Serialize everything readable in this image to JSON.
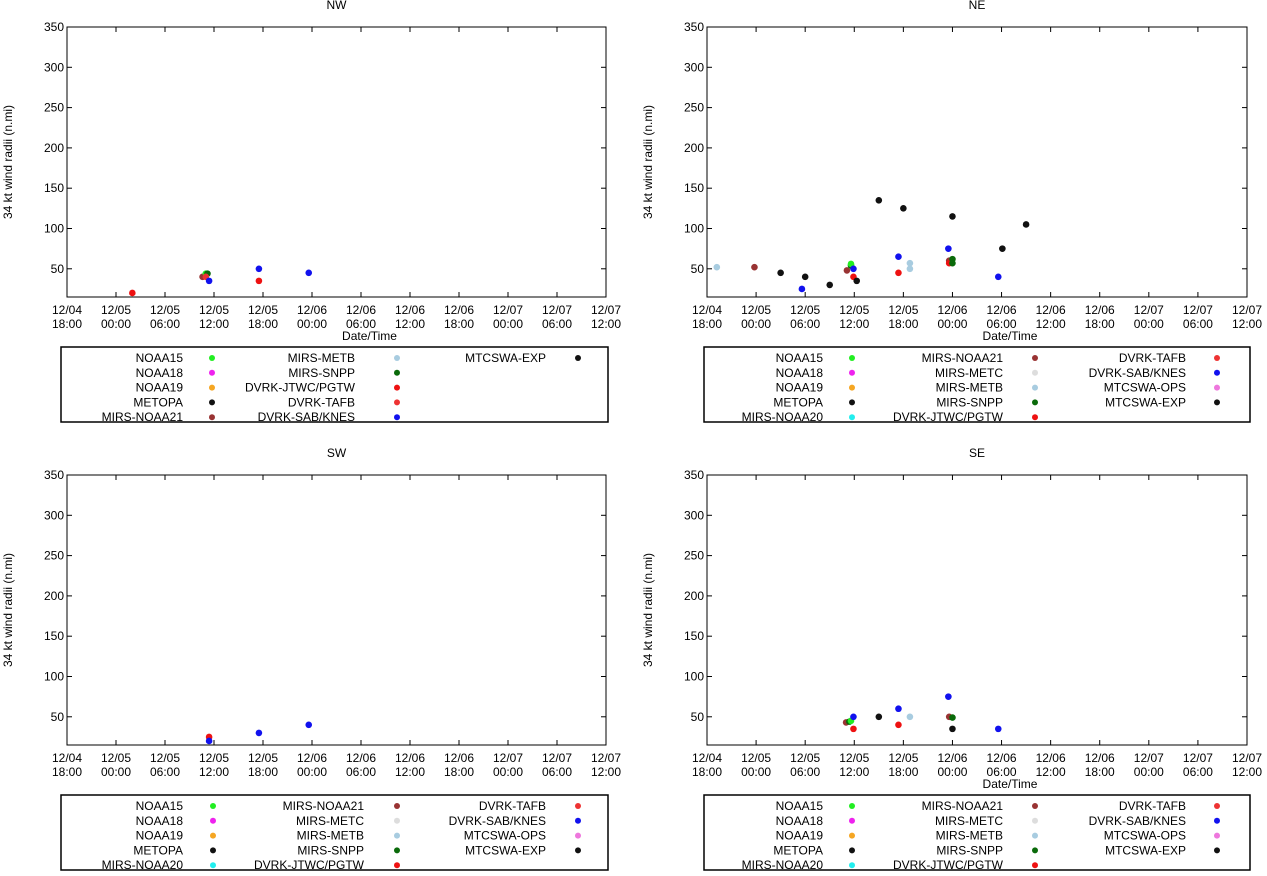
{
  "legend_styles": {
    "NOAA15": "#22ee22",
    "NOAA18": "#ee22ee",
    "NOAA19": "#f5a623",
    "METOPA": "#111111",
    "MIRS-NOAA20": "#22eeee",
    "MIRS-NOAA21": "#993333",
    "MIRS-METC": "#dddddd",
    "MIRS-METB": "#a8cce0",
    "MIRS-SNPP": "#0a6a0a",
    "DVRK-JTWC/PGTW": "#ee1111",
    "DVRK-TAFB": "#ee3333",
    "DVRK-SAB/KNES": "#1111ee",
    "MTCSWA-OPS": "#ee77dd",
    "MTCSWA-EXP": "#111111"
  },
  "chart_data": [
    {
      "type": "scatter",
      "title": "NW",
      "xlabel": "Date/Time",
      "ylabel": "34 kt wind radii (n.mi)",
      "xlim_hours": [
        0,
        66
      ],
      "ylim": [
        15,
        350
      ],
      "yticks": [
        50,
        100,
        150,
        200,
        250,
        300,
        350
      ],
      "xticks": [
        [
          "12/04",
          "18:00"
        ],
        [
          "12/05",
          "00:00"
        ],
        [
          "12/05",
          "06:00"
        ],
        [
          "12/05",
          "12:00"
        ],
        [
          "12/05",
          "18:00"
        ],
        [
          "12/06",
          "00:00"
        ],
        [
          "12/06",
          "06:00"
        ],
        [
          "12/06",
          "12:00"
        ],
        [
          "12/06",
          "18:00"
        ],
        [
          "12/07",
          "00:00"
        ],
        [
          "12/07",
          "06:00"
        ],
        [
          "12/07",
          "12:00"
        ]
      ],
      "legend_columns": [
        [
          "NOAA15",
          "NOAA18",
          "NOAA19",
          "METOPA",
          "MIRS-NOAA21"
        ],
        [
          "MIRS-METB",
          "MIRS-SNPP",
          "DVRK-JTWC/PGTW",
          "DVRK-TAFB",
          "DVRK-SAB/KNES"
        ],
        [
          "MTCSWA-EXP"
        ]
      ],
      "points": [
        {
          "series": "DVRK-JTWC/PGTW",
          "x": 8.0,
          "y": 20
        },
        {
          "series": "MIRS-NOAA21",
          "x": 16.6,
          "y": 40
        },
        {
          "series": "NOAA15",
          "x": 17.0,
          "y": 44
        },
        {
          "series": "MIRS-SNPP",
          "x": 17.2,
          "y": 44
        },
        {
          "series": "DVRK-TAFB",
          "x": 17.0,
          "y": 40
        },
        {
          "series": "DVRK-SAB/KNES",
          "x": 17.4,
          "y": 35
        },
        {
          "series": "DVRK-SAB/KNES",
          "x": 23.5,
          "y": 50
        },
        {
          "series": "DVRK-JTWC/PGTW",
          "x": 23.5,
          "y": 35
        },
        {
          "series": "DVRK-SAB/KNES",
          "x": 29.6,
          "y": 45
        }
      ]
    },
    {
      "type": "scatter",
      "title": "NE",
      "xlabel": "Date/Time",
      "ylabel": "34 kt wind radii (n.mi)",
      "xlim_hours": [
        0,
        66
      ],
      "ylim": [
        15,
        350
      ],
      "yticks": [
        50,
        100,
        150,
        200,
        250,
        300,
        350
      ],
      "xticks": [
        [
          "12/04",
          "18:00"
        ],
        [
          "12/05",
          "00:00"
        ],
        [
          "12/05",
          "06:00"
        ],
        [
          "12/05",
          "12:00"
        ],
        [
          "12/05",
          "18:00"
        ],
        [
          "12/06",
          "00:00"
        ],
        [
          "12/06",
          "06:00"
        ],
        [
          "12/06",
          "12:00"
        ],
        [
          "12/06",
          "18:00"
        ],
        [
          "12/07",
          "00:00"
        ],
        [
          "12/07",
          "06:00"
        ],
        [
          "12/07",
          "12:00"
        ]
      ],
      "legend_columns": [
        [
          "NOAA15",
          "NOAA18",
          "NOAA19",
          "METOPA",
          "MIRS-NOAA20"
        ],
        [
          "MIRS-NOAA21",
          "MIRS-METC",
          "MIRS-METB",
          "MIRS-SNPP",
          "DVRK-JTWC/PGTW"
        ],
        [
          "DVRK-TAFB",
          "DVRK-SAB/KNES",
          "MTCSWA-OPS",
          "MTCSWA-EXP"
        ]
      ],
      "points": [
        {
          "series": "MIRS-METB",
          "x": 1.2,
          "y": 52
        },
        {
          "series": "MIRS-NOAA21",
          "x": 5.8,
          "y": 52
        },
        {
          "series": "METOPA",
          "x": 9.0,
          "y": 45
        },
        {
          "series": "DVRK-SAB/KNES",
          "x": 11.6,
          "y": 25
        },
        {
          "series": "METOPA",
          "x": 12.0,
          "y": 40
        },
        {
          "series": "METOPA",
          "x": 15.0,
          "y": 30
        },
        {
          "series": "MIRS-NOAA21",
          "x": 17.1,
          "y": 48
        },
        {
          "series": "MIRS-SNPP",
          "x": 17.6,
          "y": 54
        },
        {
          "series": "NOAA15",
          "x": 17.6,
          "y": 56
        },
        {
          "series": "DVRK-SAB/KNES",
          "x": 17.9,
          "y": 50
        },
        {
          "series": "DVRK-JTWC/PGTW",
          "x": 17.9,
          "y": 40
        },
        {
          "series": "METOPA",
          "x": 18.3,
          "y": 35
        },
        {
          "series": "METOPA",
          "x": 21.0,
          "y": 135
        },
        {
          "series": "DVRK-SAB/KNES",
          "x": 23.4,
          "y": 65
        },
        {
          "series": "DVRK-JTWC/PGTW",
          "x": 23.4,
          "y": 45
        },
        {
          "series": "METOPA",
          "x": 24.0,
          "y": 125
        },
        {
          "series": "MIRS-METB",
          "x": 24.8,
          "y": 57
        },
        {
          "series": "MIRS-METB",
          "x": 24.8,
          "y": 50
        },
        {
          "series": "DVRK-SAB/KNES",
          "x": 29.5,
          "y": 75
        },
        {
          "series": "MIRS-NOAA21",
          "x": 29.6,
          "y": 60
        },
        {
          "series": "DVRK-JTWC/PGTW",
          "x": 29.6,
          "y": 57
        },
        {
          "series": "MIRS-SNPP",
          "x": 30.0,
          "y": 62
        },
        {
          "series": "MIRS-SNPP",
          "x": 30.0,
          "y": 57
        },
        {
          "series": "METOPA",
          "x": 30.0,
          "y": 115
        },
        {
          "series": "DVRK-SAB/KNES",
          "x": 35.6,
          "y": 40
        },
        {
          "series": "METOPA",
          "x": 36.1,
          "y": 75
        },
        {
          "series": "MTCSWA-EXP",
          "x": 39.0,
          "y": 105
        }
      ]
    },
    {
      "type": "scatter",
      "title": "SW",
      "xlabel": "",
      "ylabel": "34 kt wind radii (n.mi)",
      "xlim_hours": [
        0,
        66
      ],
      "ylim": [
        15,
        350
      ],
      "yticks": [
        50,
        100,
        150,
        200,
        250,
        300,
        350
      ],
      "xticks": [
        [
          "12/04",
          "18:00"
        ],
        [
          "12/05",
          "00:00"
        ],
        [
          "12/05",
          "06:00"
        ],
        [
          "12/05",
          "12:00"
        ],
        [
          "12/05",
          "18:00"
        ],
        [
          "12/06",
          "00:00"
        ],
        [
          "12/06",
          "06:00"
        ],
        [
          "12/06",
          "12:00"
        ],
        [
          "12/06",
          "18:00"
        ],
        [
          "12/07",
          "00:00"
        ],
        [
          "12/07",
          "06:00"
        ],
        [
          "12/07",
          "12:00"
        ]
      ],
      "legend_columns": [
        [
          "NOAA15",
          "NOAA18",
          "NOAA19",
          "METOPA",
          "MIRS-NOAA20"
        ],
        [
          "MIRS-NOAA21",
          "MIRS-METC",
          "MIRS-METB",
          "MIRS-SNPP",
          "DVRK-JTWC/PGTW"
        ],
        [
          "DVRK-TAFB",
          "DVRK-SAB/KNES",
          "MTCSWA-OPS",
          "MTCSWA-EXP"
        ]
      ],
      "points": [
        {
          "series": "DVRK-JTWC/PGTW",
          "x": 17.4,
          "y": 25
        },
        {
          "series": "DVRK-SAB/KNES",
          "x": 17.4,
          "y": 20
        },
        {
          "series": "DVRK-SAB/KNES",
          "x": 23.5,
          "y": 30
        },
        {
          "series": "DVRK-SAB/KNES",
          "x": 29.6,
          "y": 40
        }
      ]
    },
    {
      "type": "scatter",
      "title": "SE",
      "xlabel": "Date/Time",
      "ylabel": "34 kt wind radii (n.mi)",
      "xlim_hours": [
        0,
        66
      ],
      "ylim": [
        15,
        350
      ],
      "yticks": [
        50,
        100,
        150,
        200,
        250,
        300,
        350
      ],
      "xticks": [
        [
          "12/04",
          "18:00"
        ],
        [
          "12/05",
          "00:00"
        ],
        [
          "12/05",
          "06:00"
        ],
        [
          "12/05",
          "12:00"
        ],
        [
          "12/05",
          "18:00"
        ],
        [
          "12/06",
          "00:00"
        ],
        [
          "12/06",
          "06:00"
        ],
        [
          "12/06",
          "12:00"
        ],
        [
          "12/06",
          "18:00"
        ],
        [
          "12/07",
          "00:00"
        ],
        [
          "12/07",
          "06:00"
        ],
        [
          "12/07",
          "12:00"
        ]
      ],
      "legend_columns": [
        [
          "NOAA15",
          "NOAA18",
          "NOAA19",
          "METOPA",
          "MIRS-NOAA20"
        ],
        [
          "MIRS-NOAA21",
          "MIRS-METC",
          "MIRS-METB",
          "MIRS-SNPP",
          "DVRK-JTWC/PGTW"
        ],
        [
          "DVRK-TAFB",
          "DVRK-SAB/KNES",
          "MTCSWA-OPS",
          "MTCSWA-EXP"
        ]
      ],
      "points": [
        {
          "series": "MIRS-NOAA21",
          "x": 17.0,
          "y": 43
        },
        {
          "series": "MIRS-SNPP",
          "x": 17.4,
          "y": 44
        },
        {
          "series": "NOAA15",
          "x": 17.6,
          "y": 45
        },
        {
          "series": "DVRK-SAB/KNES",
          "x": 17.9,
          "y": 50
        },
        {
          "series": "DVRK-JTWC/PGTW",
          "x": 17.9,
          "y": 35
        },
        {
          "series": "METOPA",
          "x": 21.0,
          "y": 50
        },
        {
          "series": "DVRK-SAB/KNES",
          "x": 23.4,
          "y": 60
        },
        {
          "series": "DVRK-JTWC/PGTW",
          "x": 23.4,
          "y": 40
        },
        {
          "series": "MIRS-METB",
          "x": 24.8,
          "y": 50
        },
        {
          "series": "DVRK-SAB/KNES",
          "x": 29.5,
          "y": 75
        },
        {
          "series": "MIRS-NOAA21",
          "x": 29.6,
          "y": 50
        },
        {
          "series": "MIRS-SNPP",
          "x": 30.0,
          "y": 49
        },
        {
          "series": "METOPA",
          "x": 30.0,
          "y": 35
        },
        {
          "series": "DVRK-SAB/KNES",
          "x": 35.6,
          "y": 35
        }
      ]
    }
  ]
}
